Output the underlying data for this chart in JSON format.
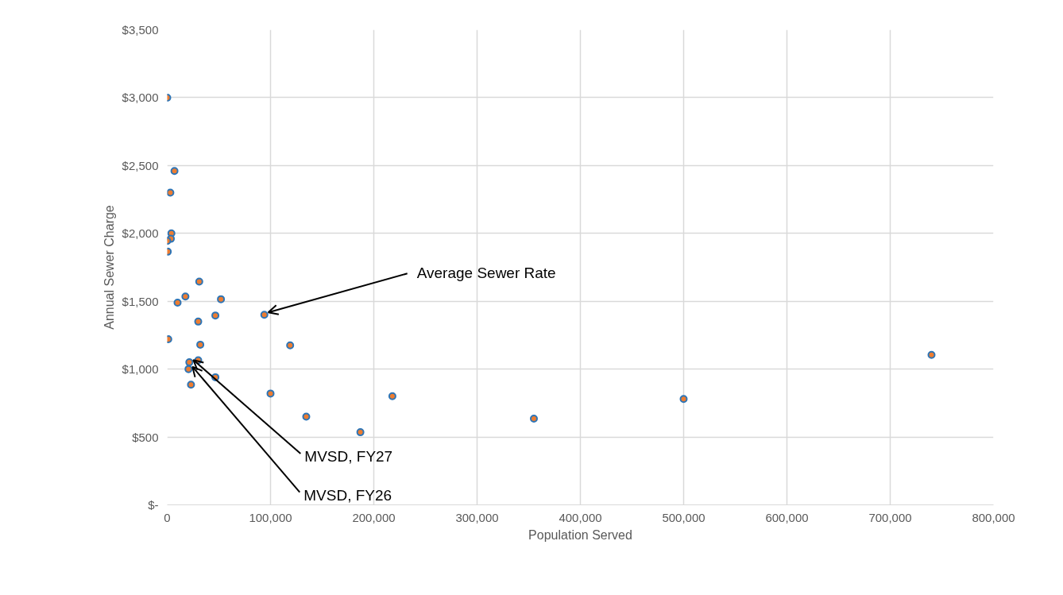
{
  "chart_data": {
    "type": "scatter",
    "xlabel": "Population Served",
    "ylabel": "Annual Sewer Charge",
    "x": [
      0,
      7000,
      3000,
      4000,
      3500,
      0,
      500,
      1000,
      31000,
      17600,
      10000,
      52000,
      46600,
      30000,
      32000,
      30000,
      21400,
      20600,
      23000,
      46600,
      94000,
      119000,
      100000,
      134600,
      187000,
      218000,
      355000,
      500000,
      740000
    ],
    "series": [
      {
        "color": "#ed7d31",
        "values": [
          3000,
          2460,
          2300,
          2000,
          1960,
          1945,
          1865,
          1220,
          1645,
          1535,
          1490,
          1515,
          1395,
          1350,
          1180,
          1065,
          1050,
          1000,
          885,
          940,
          1400,
          1175,
          820,
          650,
          535,
          800,
          635,
          780,
          1105
        ]
      }
    ],
    "xlim": [
      0,
      800000
    ],
    "ylim": [
      0,
      3500
    ],
    "xticks": [
      {
        "value": 0,
        "label": "0"
      },
      {
        "value": 100000,
        "label": "100,000"
      },
      {
        "value": 200000,
        "label": "200,000"
      },
      {
        "value": 300000,
        "label": "300,000"
      },
      {
        "value": 400000,
        "label": "400,000"
      },
      {
        "value": 500000,
        "label": "500,000"
      },
      {
        "value": 600000,
        "label": "600,000"
      },
      {
        "value": 700000,
        "label": "700,000"
      },
      {
        "value": 800000,
        "label": "800,000"
      }
    ],
    "yticks": [
      {
        "value": 0,
        "label": "$-"
      },
      {
        "value": 500,
        "label": "$500"
      },
      {
        "value": 1000,
        "label": "$1,000"
      },
      {
        "value": 1500,
        "label": "$1,500"
      },
      {
        "value": 2000,
        "label": "$2,000"
      },
      {
        "value": 2500,
        "label": "$2,500"
      },
      {
        "value": 3000,
        "label": "$3,000"
      },
      {
        "value": 3500,
        "label": "$3,500"
      }
    ],
    "grid": true,
    "marker": "circle",
    "annotations": [
      {
        "text": "Average Sewer Rate",
        "x": 94000,
        "y": 1400
      },
      {
        "text": "MVSD, FY27",
        "x": 21400,
        "y": 1050
      },
      {
        "text": "MVSD, FY26",
        "x": 20600,
        "y": 1000
      }
    ]
  }
}
